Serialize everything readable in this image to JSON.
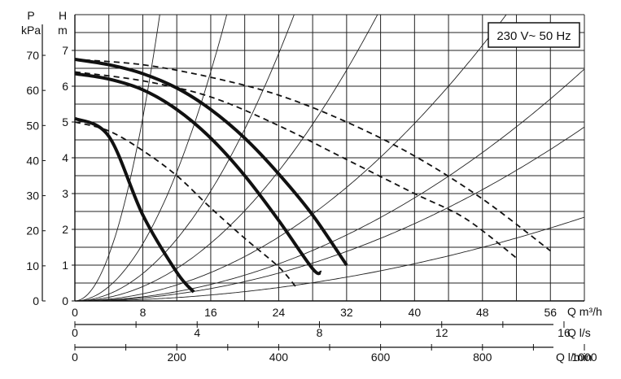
{
  "chart_data": {
    "type": "line",
    "title": "",
    "annotation": "230 V~ 50 Hz",
    "grid": true,
    "y_axes": {
      "pressure": {
        "label_top": "P",
        "label_unit": "kPa",
        "ticks": [
          "0",
          "10",
          "20",
          "30",
          "40",
          "50",
          "60",
          "70"
        ],
        "range": [
          0,
          70
        ]
      },
      "head": {
        "label_top": "H",
        "label_unit": "m",
        "ticks": [
          "0",
          "1",
          "2",
          "3",
          "4",
          "5",
          "6",
          "7"
        ],
        "range": [
          0,
          7
        ]
      }
    },
    "x_axes": {
      "m3h": {
        "label": "Q m³/h",
        "ticks": [
          "0",
          "8",
          "16",
          "24",
          "32",
          "40",
          "48",
          "56"
        ],
        "range": [
          0,
          60
        ]
      },
      "ls": {
        "label": "Q l/s",
        "ticks": [
          "0",
          "4",
          "8",
          "12",
          "16"
        ]
      },
      "lmin": {
        "label": "Q l/min",
        "ticks": [
          "0",
          "200",
          "400",
          "600",
          "800",
          "1000"
        ]
      }
    },
    "series": [
      {
        "style": "solid-thick",
        "points": [
          [
            0,
            5.1
          ],
          [
            4,
            4.6
          ],
          [
            8,
            2.4
          ],
          [
            12,
            0.8
          ],
          [
            14,
            0.25
          ]
        ]
      },
      {
        "style": "solid-thick",
        "points": [
          [
            0,
            6.35
          ],
          [
            4,
            6.2
          ],
          [
            8,
            5.9
          ],
          [
            12,
            5.35
          ],
          [
            16,
            4.55
          ],
          [
            20,
            3.5
          ],
          [
            24,
            2.25
          ],
          [
            28,
            0.9
          ],
          [
            29,
            0.8
          ]
        ]
      },
      {
        "style": "solid-thick",
        "points": [
          [
            0,
            6.75
          ],
          [
            4,
            6.6
          ],
          [
            8,
            6.35
          ],
          [
            12,
            5.95
          ],
          [
            16,
            5.35
          ],
          [
            20,
            4.55
          ],
          [
            24,
            3.55
          ],
          [
            28,
            2.4
          ],
          [
            32,
            1.0
          ]
        ]
      },
      {
        "style": "dashed",
        "points": [
          [
            0,
            5.0
          ],
          [
            4,
            4.75
          ],
          [
            8,
            4.2
          ],
          [
            12,
            3.5
          ],
          [
            16,
            2.6
          ],
          [
            20,
            1.75
          ],
          [
            24,
            0.95
          ],
          [
            26,
            0.4
          ]
        ]
      },
      {
        "style": "dashed",
        "points": [
          [
            0,
            6.4
          ],
          [
            8,
            6.15
          ],
          [
            16,
            5.7
          ],
          [
            24,
            4.9
          ],
          [
            32,
            3.95
          ],
          [
            40,
            3.0
          ],
          [
            46,
            2.3
          ],
          [
            52,
            1.2
          ]
        ]
      },
      {
        "style": "dashed",
        "points": [
          [
            0,
            6.75
          ],
          [
            8,
            6.6
          ],
          [
            16,
            6.25
          ],
          [
            24,
            5.75
          ],
          [
            32,
            5.0
          ],
          [
            40,
            4.05
          ],
          [
            48,
            2.85
          ],
          [
            56,
            1.4
          ]
        ]
      }
    ],
    "system_curves_k": [
      0.08,
      0.025,
      0.012,
      0.0063,
      0.0031,
      0.0018,
      0.00135,
      0.00065
    ]
  }
}
